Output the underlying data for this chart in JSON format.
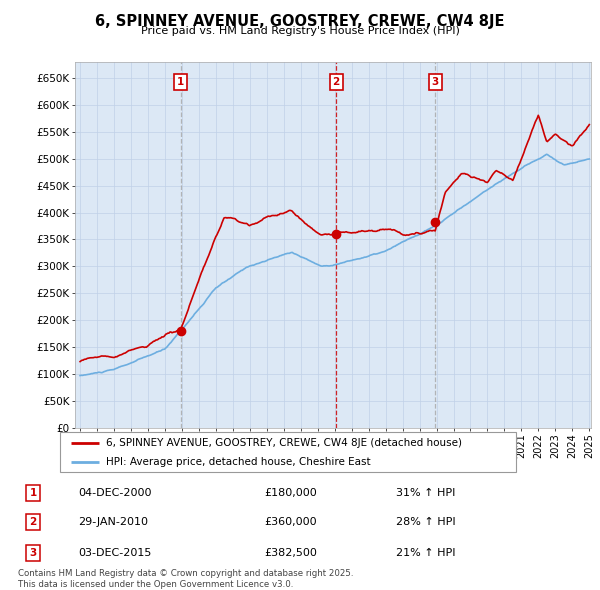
{
  "title": "6, SPINNEY AVENUE, GOOSTREY, CREWE, CW4 8JE",
  "subtitle": "Price paid vs. HM Land Registry's House Price Index (HPI)",
  "ylim": [
    0,
    680000
  ],
  "yticks": [
    0,
    50000,
    100000,
    150000,
    200000,
    250000,
    300000,
    350000,
    400000,
    450000,
    500000,
    550000,
    600000,
    650000
  ],
  "ytick_labels": [
    "£0",
    "£50K",
    "£100K",
    "£150K",
    "£200K",
    "£250K",
    "£300K",
    "£350K",
    "£400K",
    "£450K",
    "£500K",
    "£550K",
    "£600K",
    "£650K"
  ],
  "hpi_color": "#6daee0",
  "price_color": "#cc0000",
  "grid_color": "#c0d0e8",
  "chart_bg_color": "#dce8f5",
  "background_color": "#ffffff",
  "legend_border_color": "#999999",
  "sale_color": "#cc0000",
  "vline1_color": "#aaaaaa",
  "vline2_color": "#cc0000",
  "vline3_color": "#aaaaaa",
  "annotations": [
    {
      "label": "1",
      "year": 2000.92,
      "price": 180000,
      "vline_color": "#aaaaaa"
    },
    {
      "label": "2",
      "year": 2010.08,
      "price": 360000,
      "vline_color": "#cc0000"
    },
    {
      "label": "3",
      "year": 2015.92,
      "price": 382500,
      "vline_color": "#aaaaaa"
    }
  ],
  "table_rows": [
    {
      "num": "1",
      "date": "04-DEC-2000",
      "price": "£180,000",
      "pct": "31% ↑ HPI"
    },
    {
      "num": "2",
      "date": "29-JAN-2010",
      "price": "£360,000",
      "pct": "28% ↑ HPI"
    },
    {
      "num": "3",
      "date": "03-DEC-2015",
      "price": "£382,500",
      "pct": "21% ↑ HPI"
    }
  ],
  "footer": "Contains HM Land Registry data © Crown copyright and database right 2025.\nThis data is licensed under the Open Government Licence v3.0.",
  "legend_line1": "6, SPINNEY AVENUE, GOOSTREY, CREWE, CW4 8JE (detached house)",
  "legend_line2": "HPI: Average price, detached house, Cheshire East",
  "x_start_year": 1995,
  "x_end_year": 2025
}
